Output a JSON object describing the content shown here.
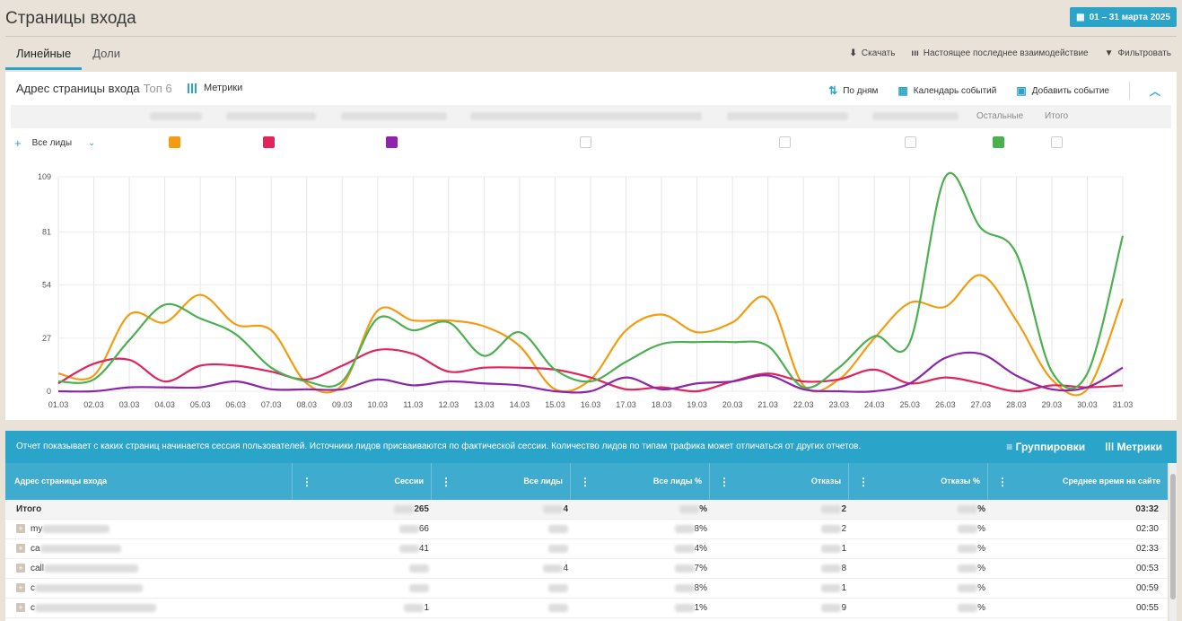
{
  "header": {
    "title": "Страницы входа",
    "date_range": "01 – 31 марта 2025"
  },
  "tabs": [
    {
      "label": "Линейные"
    },
    {
      "label": "Доли"
    }
  ],
  "toolbar": {
    "download": "Скачать",
    "interaction": "Настоящее последнее взаимодействие",
    "filter": "Фильтровать"
  },
  "card": {
    "title": "Адрес страницы входа",
    "top_label": "Топ 6",
    "metrics": "Метрики",
    "by_days": "По дням",
    "events_calendar": "Календарь событий",
    "add_event": "Добавить событие",
    "legend_others": "Остальные",
    "legend_total": "Итого",
    "all_leads": "Все лиды"
  },
  "colors": {
    "accent": "#2ba4c9",
    "orange": "#f39c12",
    "crimson": "#e0245e",
    "purple": "#8e24aa",
    "green": "#4caf50"
  },
  "chart_data": {
    "type": "line",
    "x": [
      "01.03",
      "02.03",
      "03.03",
      "04.03",
      "05.03",
      "06.03",
      "07.03",
      "08.03",
      "09.03",
      "10.03",
      "11.03",
      "12.03",
      "13.03",
      "14.03",
      "15.03",
      "16.03",
      "17.03",
      "18.03",
      "19.03",
      "20.03",
      "21.03",
      "22.03",
      "23.03",
      "24.03",
      "25.03",
      "26.03",
      "27.03",
      "28.03",
      "29.03",
      "30.03",
      "31.03"
    ],
    "yticks": [
      0,
      27,
      54,
      81,
      109
    ],
    "ylim": [
      0,
      109
    ],
    "grid": true,
    "series": [
      {
        "color": "#f39c12",
        "values": [
          9,
          8,
          39,
          35,
          49,
          34,
          31,
          4,
          3,
          41,
          36,
          36,
          33,
          23,
          1,
          6,
          31,
          39,
          30,
          35,
          47,
          3,
          6,
          27,
          45,
          43,
          59,
          36,
          6,
          1,
          47
        ]
      },
      {
        "color": "#e0245e",
        "values": [
          4,
          14,
          16,
          5,
          13,
          13,
          10,
          6,
          13,
          21,
          19,
          10,
          12,
          12,
          11,
          7,
          1,
          2,
          0,
          5,
          9,
          5,
          6,
          11,
          4,
          7,
          4,
          0,
          3,
          2,
          3
        ]
      },
      {
        "color": "#8e24aa",
        "values": [
          0,
          0,
          2,
          2,
          2,
          5,
          1,
          1,
          1,
          6,
          3,
          5,
          4,
          3,
          0,
          0,
          7,
          1,
          4,
          5,
          8,
          1,
          0,
          0,
          4,
          17,
          19,
          8,
          1,
          2,
          12
        ]
      },
      {
        "color": "#4caf50",
        "values": [
          5,
          6,
          26,
          44,
          37,
          29,
          12,
          5,
          5,
          37,
          31,
          35,
          18,
          30,
          11,
          5,
          15,
          24,
          25,
          25,
          23,
          2,
          12,
          28,
          25,
          109,
          83,
          70,
          10,
          9,
          79
        ]
      }
    ]
  },
  "banner": {
    "text": "Отчет показывает с каких страниц начинается сессия пользователей. Источники лидов присваиваются по фактической сессии. Количество лидов по типам трафика может отличаться от других отчетов.",
    "groupings": "Группировки",
    "metrics": "Метрики"
  },
  "table": {
    "columns": [
      "Адрес страницы входа",
      "Сессии",
      "Все лиды",
      "Все лиды %",
      "Отказы",
      "Отказы %",
      "Среднее время на сайте"
    ],
    "rows": [
      {
        "name": "Итого",
        "sessions": "265",
        "leads": "4",
        "leads_pct": "%",
        "bounces": "2",
        "bounces_pct": "%",
        "avg_time": "03:32"
      },
      {
        "name": "my",
        "sessions": "66",
        "leads": "",
        "leads_pct": "8%",
        "bounces": "2",
        "bounces_pct": "%",
        "avg_time": "02:30"
      },
      {
        "name": "ca",
        "sessions": "41",
        "leads": "",
        "leads_pct": "4%",
        "bounces": "1",
        "bounces_pct": "%",
        "avg_time": "02:33"
      },
      {
        "name": "call",
        "sessions": "",
        "leads": "4",
        "leads_pct": "7%",
        "bounces": "8",
        "bounces_pct": "%",
        "avg_time": "00:53"
      },
      {
        "name": "c",
        "sessions": "",
        "leads": "",
        "leads_pct": "8%",
        "bounces": "1",
        "bounces_pct": "%",
        "avg_time": "00:59"
      },
      {
        "name": "c",
        "sessions": "1",
        "leads": "",
        "leads_pct": "1%",
        "bounces": "9",
        "bounces_pct": "%",
        "avg_time": "00:55"
      }
    ]
  }
}
